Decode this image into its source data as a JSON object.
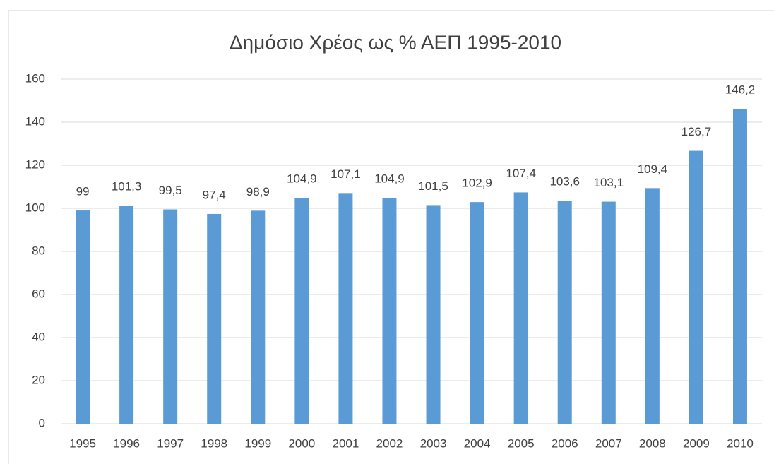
{
  "chart_data": {
    "type": "bar",
    "title": "Δημόσιο Χρέος ως % ΑΕΠ 1995-2010",
    "categories": [
      "1995",
      "1996",
      "1997",
      "1998",
      "1999",
      "2000",
      "2001",
      "2002",
      "2003",
      "2004",
      "2005",
      "2006",
      "2007",
      "2008",
      "2009",
      "2010"
    ],
    "values": [
      99,
      101.3,
      99.5,
      97.4,
      98.9,
      104.9,
      107.1,
      104.9,
      101.5,
      102.9,
      107.4,
      103.6,
      103.1,
      109.4,
      126.7,
      146.2
    ],
    "value_labels": [
      "99",
      "101,3",
      "99,5",
      "97,4",
      "98,9",
      "104,9",
      "107,1",
      "104,9",
      "101,5",
      "102,9",
      "107,4",
      "103,6",
      "103,1",
      "109,4",
      "126,7",
      "146,2"
    ],
    "color": "#5b9bd5",
    "ylim": [
      0,
      160
    ],
    "yticks": [
      0,
      20,
      40,
      60,
      80,
      100,
      120,
      140,
      160
    ],
    "grid": true
  }
}
